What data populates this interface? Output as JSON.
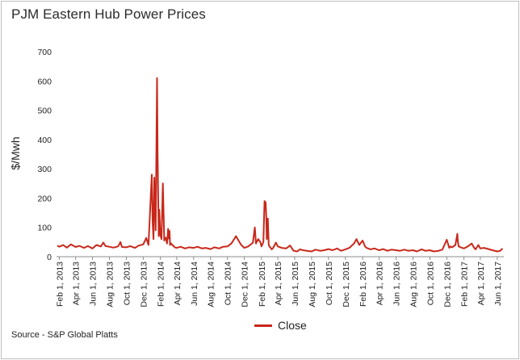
{
  "title": "PJM Eastern Hub Power Prices",
  "source": "Source - S&P Global Platts",
  "chart_data": {
    "type": "line",
    "title": "PJM Eastern Hub Power Prices",
    "xlabel": "",
    "ylabel": "$/Mwh",
    "ylim": [
      0,
      700
    ],
    "yticks": [
      0,
      100,
      200,
      300,
      400,
      500,
      600,
      700
    ],
    "grid": false,
    "legend_position": "bottom",
    "colors": {
      "series": "#c8281a"
    },
    "categories": [
      "Feb 1, 2013",
      "Apr 1, 2013",
      "Jun 1, 2013",
      "Aug 1, 2013",
      "Oct 1, 2013",
      "Dec 1, 2013",
      "Feb 1, 2014",
      "Apr 1, 2014",
      "Jun 1, 2014",
      "Aug 1, 2014",
      "Oct 1, 2014",
      "Dec 1, 2014",
      "Feb 1, 2015",
      "Apr 1, 2015",
      "Jun 1, 2015",
      "Aug 1, 2015",
      "Oct 1, 2015",
      "Dec 1, 2015",
      "Feb 1, 2016",
      "Apr 1, 2016",
      "Jun 1, 2016",
      "Aug 1, 2016",
      "Oct 1, 2016",
      "Dec 1, 2016",
      "Feb 1, 2017",
      "Apr 1, 2017",
      "Jun 1, 2017"
    ],
    "series": [
      {
        "name": "Close",
        "x": [
          "2013-01-25",
          "2013-02-01",
          "2013-02-15",
          "2013-02-28",
          "2013-03-15",
          "2013-04-01",
          "2013-04-15",
          "2013-05-01",
          "2013-05-15",
          "2013-06-01",
          "2013-06-15",
          "2013-07-01",
          "2013-07-10",
          "2013-07-18",
          "2013-08-01",
          "2013-08-15",
          "2013-09-01",
          "2013-09-10",
          "2013-09-15",
          "2013-10-01",
          "2013-10-15",
          "2013-11-01",
          "2013-11-15",
          "2013-12-01",
          "2013-12-12",
          "2013-12-20",
          "2014-01-01",
          "2014-01-04",
          "2014-01-07",
          "2014-01-10",
          "2014-01-15",
          "2014-01-20",
          "2014-01-22",
          "2014-01-24",
          "2014-01-26",
          "2014-01-28",
          "2014-02-01",
          "2014-02-05",
          "2014-02-10",
          "2014-02-15",
          "2014-02-20",
          "2014-02-25",
          "2014-03-01",
          "2014-03-04",
          "2014-03-06",
          "2014-03-08",
          "2014-03-12",
          "2014-03-18",
          "2014-03-22",
          "2014-03-25",
          "2014-04-01",
          "2014-04-15",
          "2014-05-01",
          "2014-05-15",
          "2014-06-01",
          "2014-06-15",
          "2014-07-01",
          "2014-07-15",
          "2014-08-01",
          "2014-08-15",
          "2014-09-01",
          "2014-09-15",
          "2014-10-01",
          "2014-10-15",
          "2014-11-01",
          "2014-11-10",
          "2014-11-20",
          "2014-12-01",
          "2014-12-15",
          "2015-01-01",
          "2015-01-08",
          "2015-01-12",
          "2015-01-20",
          "2015-01-28",
          "2015-02-01",
          "2015-02-08",
          "2015-02-12",
          "2015-02-16",
          "2015-02-18",
          "2015-02-20",
          "2015-02-24",
          "2015-02-27",
          "2015-03-02",
          "2015-03-06",
          "2015-03-10",
          "2015-03-15",
          "2015-03-25",
          "2015-04-01",
          "2015-04-15",
          "2015-05-01",
          "2015-05-15",
          "2015-05-28",
          "2015-06-10",
          "2015-06-20",
          "2015-07-01",
          "2015-07-15",
          "2015-08-01",
          "2015-08-15",
          "2015-09-01",
          "2015-09-15",
          "2015-10-01",
          "2015-10-15",
          "2015-11-01",
          "2015-11-15",
          "2015-12-01",
          "2015-12-15",
          "2016-01-01",
          "2016-01-10",
          "2016-01-20",
          "2016-02-01",
          "2016-02-10",
          "2016-02-15",
          "2016-03-01",
          "2016-03-15",
          "2016-04-01",
          "2016-04-15",
          "2016-05-01",
          "2016-05-15",
          "2016-06-01",
          "2016-06-15",
          "2016-07-01",
          "2016-07-15",
          "2016-08-01",
          "2016-08-15",
          "2016-09-01",
          "2016-09-15",
          "2016-10-01",
          "2016-10-15",
          "2016-11-01",
          "2016-11-15",
          "2016-12-01",
          "2016-12-10",
          "2016-12-15",
          "2016-12-20",
          "2017-01-01",
          "2017-01-08",
          "2017-01-10",
          "2017-01-13",
          "2017-01-20",
          "2017-02-01",
          "2017-02-15",
          "2017-03-01",
          "2017-03-10",
          "2017-03-15",
          "2017-03-25",
          "2017-04-01",
          "2017-04-15",
          "2017-05-01",
          "2017-05-15",
          "2017-06-01",
          "2017-06-12",
          "2017-06-20"
        ],
        "values": [
          38,
          34,
          40,
          31,
          42,
          33,
          37,
          30,
          36,
          28,
          40,
          35,
          48,
          36,
          34,
          31,
          35,
          50,
          33,
          32,
          36,
          30,
          38,
          42,
          64,
          40,
          280,
          120,
          60,
          270,
          90,
          610,
          350,
          200,
          70,
          160,
          75,
          60,
          250,
          55,
          65,
          45,
          95,
          62,
          88,
          40,
          45,
          38,
          35,
          32,
          30,
          34,
          28,
          32,
          30,
          34,
          28,
          30,
          26,
          32,
          28,
          34,
          35,
          45,
          70,
          55,
          40,
          30,
          35,
          48,
          100,
          45,
          60,
          50,
          35,
          50,
          190,
          185,
          140,
          60,
          130,
          40,
          35,
          30,
          25,
          30,
          48,
          35,
          30,
          28,
          38,
          20,
          18,
          25,
          22,
          20,
          18,
          24,
          20,
          22,
          26,
          22,
          28,
          20,
          25,
          30,
          45,
          60,
          40,
          55,
          35,
          30,
          25,
          28,
          22,
          26,
          20,
          24,
          22,
          20,
          24,
          20,
          22,
          18,
          25,
          20,
          22,
          18,
          20,
          24,
          58,
          30,
          35,
          32,
          40,
          78,
          50,
          35,
          32,
          28,
          35,
          45,
          30,
          25,
          40,
          28,
          30,
          26,
          22,
          18,
          20,
          28
        ]
      }
    ]
  }
}
